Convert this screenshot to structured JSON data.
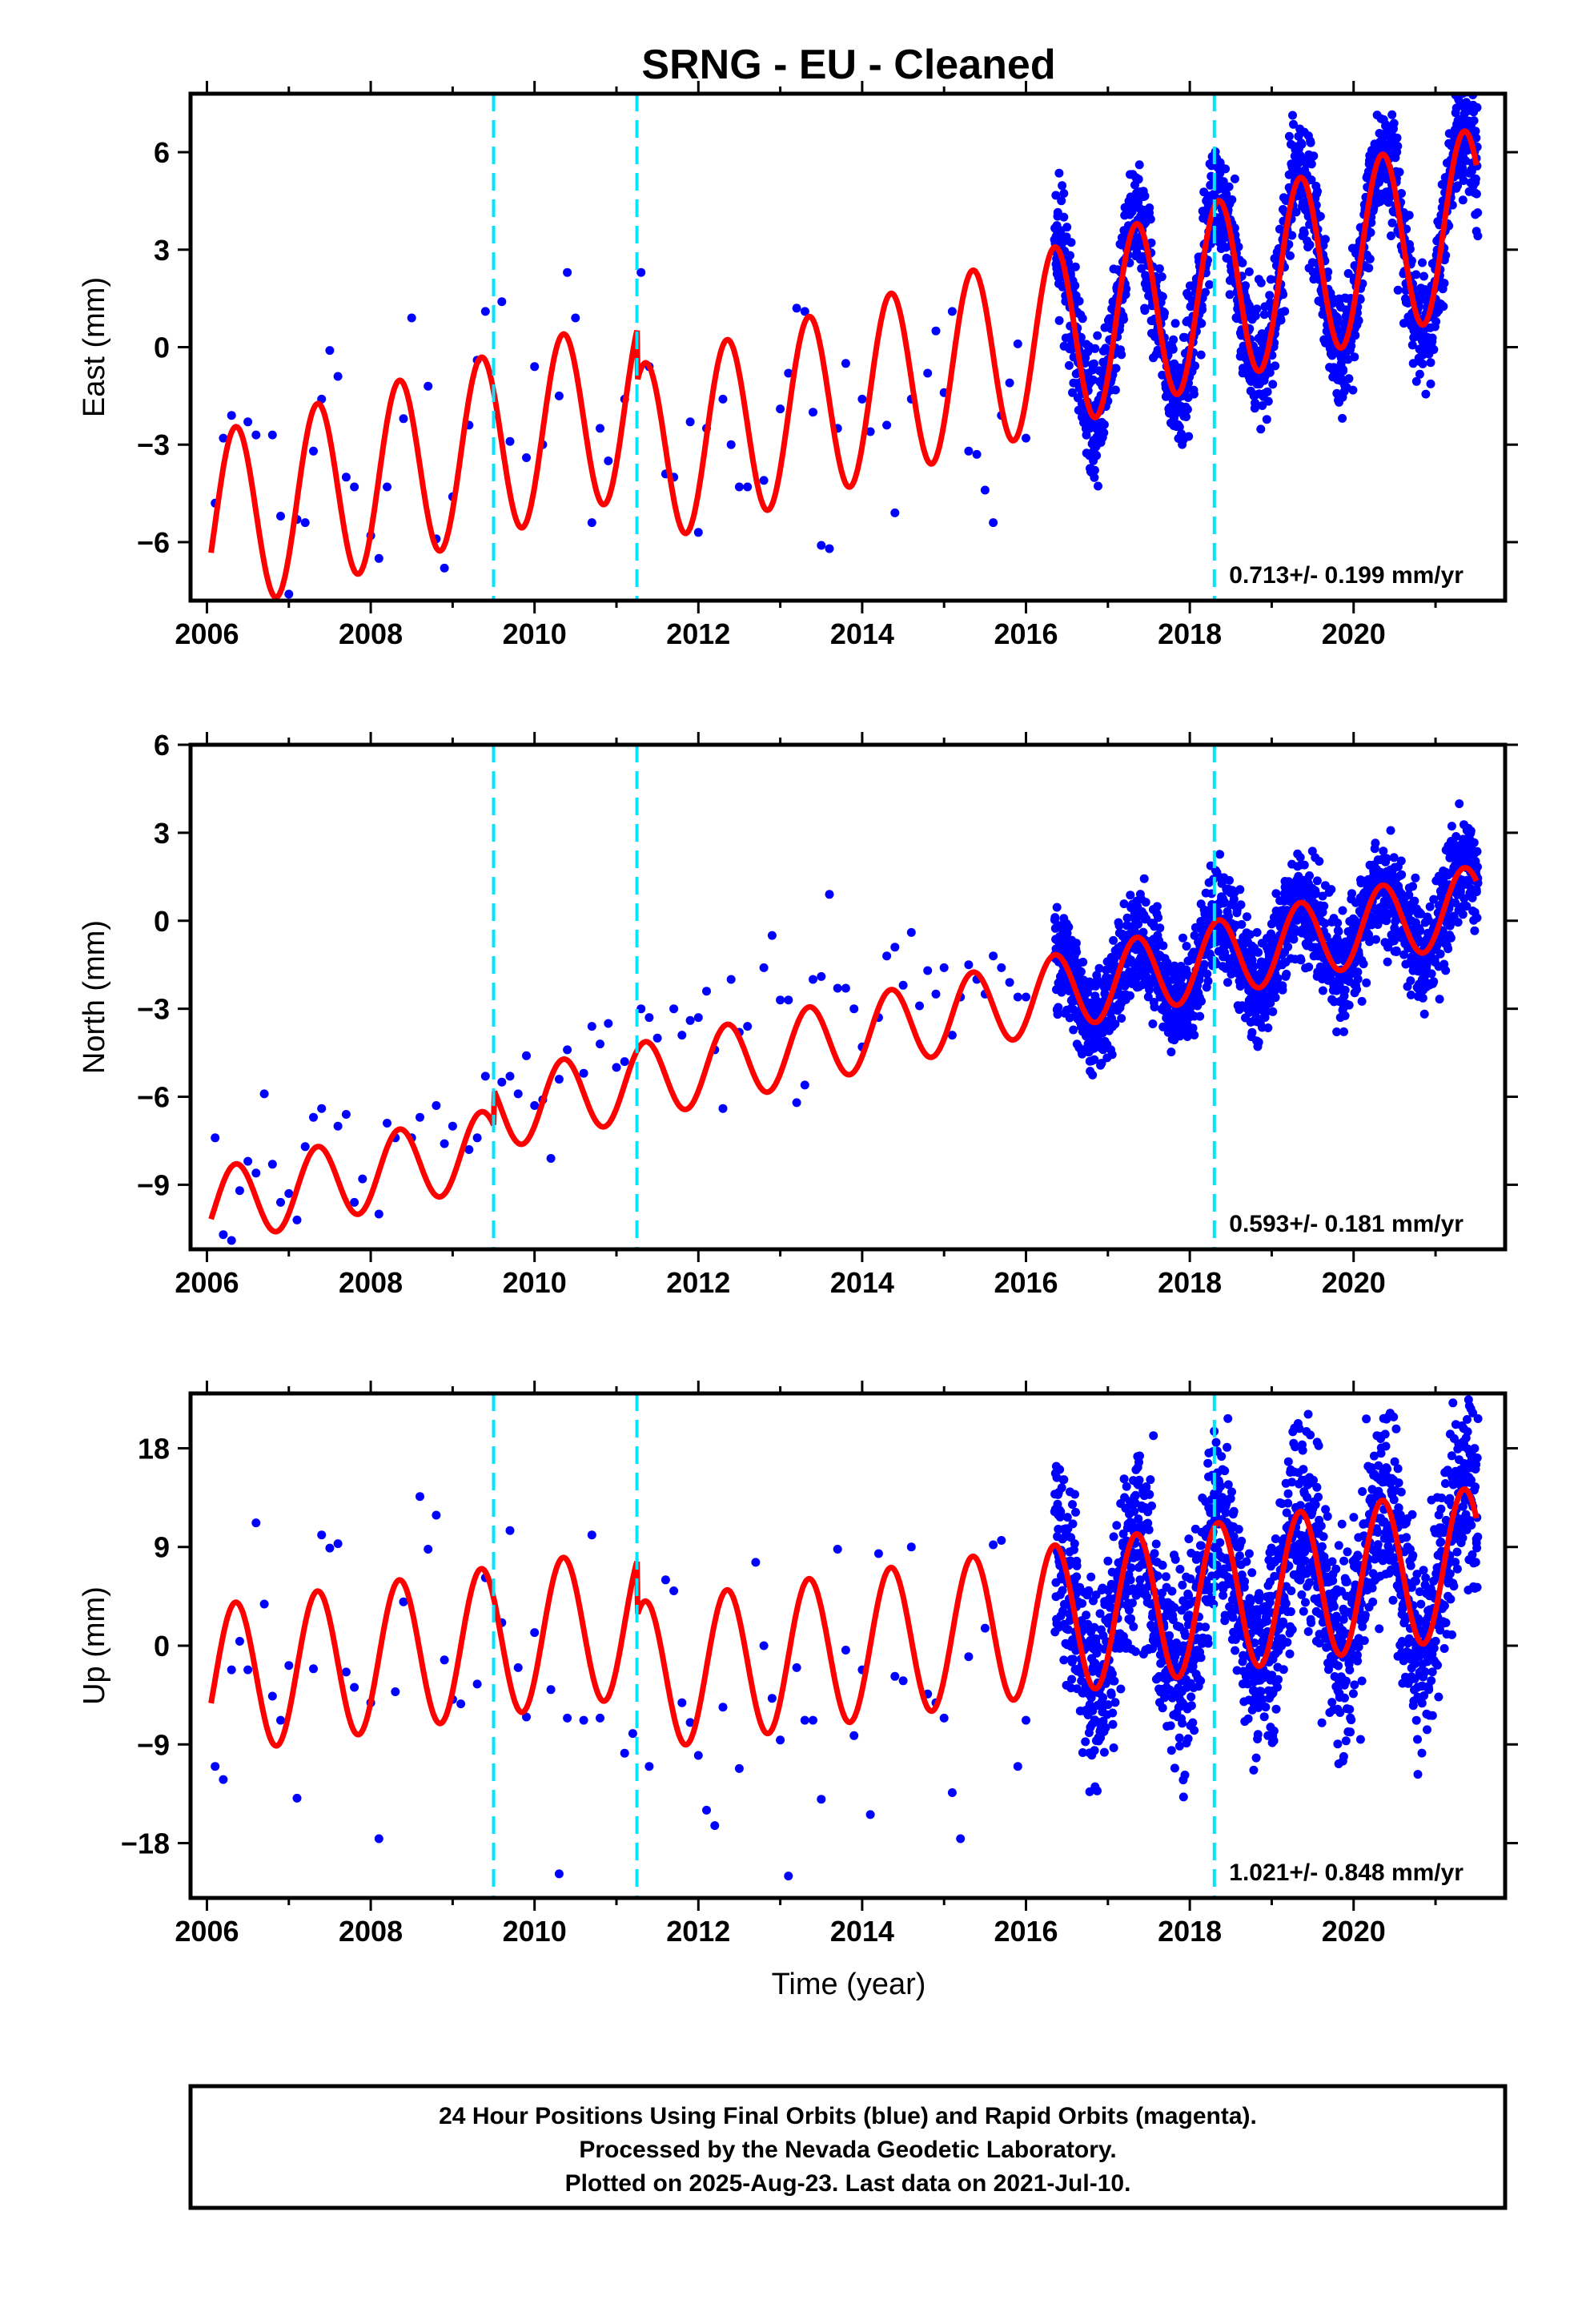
{
  "chart_data": {
    "title": "SRNG  - EU - Cleaned",
    "type": "scatter",
    "x_tick_labels": [
      "2006",
      "2008",
      "2010",
      "2012",
      "2014",
      "2016",
      "2018",
      "2020"
    ],
    "xlim": [
      2005.8,
      2021.85
    ],
    "xlabel": "Time (year)",
    "equipment_change_epochs": [
      2009.5,
      2011.25,
      2018.3
    ],
    "colors": {
      "points": "#0000ff",
      "model": "#ff0000",
      "vlines": "#00e5ff"
    },
    "panels": [
      {
        "ylabel": "East (mm)",
        "ylim": [
          -7.8,
          7.8
        ],
        "yticks": [
          -6,
          -3,
          0,
          3,
          6
        ],
        "ytick_labels": [
          "−6",
          "−3",
          "0",
          "3",
          "6"
        ],
        "rate_label": "0.713+/- 0.199 mm/yr",
        "rate": 0.713,
        "offset": -5.5,
        "amplitude": 2.8,
        "noise": 0.9,
        "steps": [
          [
            2011.25,
            -1.6
          ]
        ],
        "points": [
          [
            2006.1,
            -4.8
          ],
          [
            2006.2,
            -2.8
          ],
          [
            2006.3,
            -2.1
          ],
          [
            2006.5,
            -2.3
          ],
          [
            2006.6,
            -2.7
          ],
          [
            2006.8,
            -2.7
          ],
          [
            2006.9,
            -5.2
          ],
          [
            2007.0,
            -7.6
          ],
          [
            2007.1,
            -5.3
          ],
          [
            2007.2,
            -5.4
          ],
          [
            2007.3,
            -3.2
          ],
          [
            2007.4,
            -1.6
          ],
          [
            2007.5,
            -0.1
          ],
          [
            2007.6,
            -0.9
          ],
          [
            2007.7,
            -4.0
          ],
          [
            2007.8,
            -4.3
          ],
          [
            2008.0,
            -5.8
          ],
          [
            2008.1,
            -6.5
          ],
          [
            2008.2,
            -4.3
          ],
          [
            2008.4,
            -2.2
          ],
          [
            2008.5,
            0.9
          ],
          [
            2008.7,
            -1.2
          ],
          [
            2008.8,
            -5.9
          ],
          [
            2008.9,
            -6.8
          ],
          [
            2009.0,
            -4.6
          ],
          [
            2009.2,
            -2.4
          ],
          [
            2009.3,
            -0.4
          ],
          [
            2009.4,
            1.1
          ],
          [
            2009.6,
            1.4
          ],
          [
            2009.7,
            -2.9
          ],
          [
            2009.9,
            -3.4
          ],
          [
            2010.0,
            -0.6
          ],
          [
            2010.1,
            -3.0
          ],
          [
            2010.3,
            -1.5
          ],
          [
            2010.4,
            2.3
          ],
          [
            2010.5,
            0.9
          ],
          [
            2010.7,
            -5.4
          ],
          [
            2010.8,
            -2.5
          ],
          [
            2010.9,
            -3.5
          ],
          [
            2011.1,
            -1.6
          ],
          [
            2011.3,
            2.3
          ],
          [
            2011.4,
            -0.6
          ],
          [
            2011.6,
            -3.9
          ],
          [
            2011.7,
            -4.0
          ],
          [
            2011.9,
            -2.3
          ],
          [
            2012.0,
            -5.7
          ],
          [
            2012.1,
            -2.5
          ],
          [
            2012.3,
            -1.6
          ],
          [
            2012.4,
            -3.0
          ],
          [
            2012.5,
            -4.3
          ],
          [
            2012.6,
            -4.3
          ],
          [
            2012.8,
            -4.1
          ],
          [
            2013.0,
            -1.9
          ],
          [
            2013.1,
            -0.8
          ],
          [
            2013.2,
            1.2
          ],
          [
            2013.3,
            1.1
          ],
          [
            2013.4,
            -2.0
          ],
          [
            2013.5,
            -6.1
          ],
          [
            2013.6,
            -6.2
          ],
          [
            2013.7,
            -2.5
          ],
          [
            2013.8,
            -0.5
          ],
          [
            2014.0,
            -1.6
          ],
          [
            2014.1,
            -2.6
          ],
          [
            2014.3,
            -2.4
          ],
          [
            2014.4,
            -5.1
          ],
          [
            2014.6,
            -1.6
          ],
          [
            2014.8,
            -0.8
          ],
          [
            2014.9,
            0.5
          ],
          [
            2015.0,
            -1.4
          ],
          [
            2015.1,
            1.1
          ],
          [
            2015.3,
            -3.2
          ],
          [
            2015.4,
            -3.3
          ],
          [
            2015.5,
            -4.4
          ],
          [
            2015.6,
            -5.4
          ],
          [
            2015.7,
            -2.1
          ],
          [
            2015.8,
            -1.1
          ],
          [
            2015.9,
            0.1
          ],
          [
            2016.0,
            -2.8
          ]
        ]
      },
      {
        "ylabel": "North (mm)",
        "ylim": [
          -11.2,
          6
        ],
        "yticks": [
          -9,
          -6,
          -3,
          0,
          3,
          6
        ],
        "ytick_labels": [
          "−9",
          "−6",
          "−3",
          "0",
          "3",
          "6"
        ],
        "rate_label": "0.593+/- 0.181 mm/yr",
        "rate": 0.593,
        "offset": -9.8,
        "amplitude": 1.3,
        "noise": 0.9,
        "steps": [
          [
            2009.5,
            1.2
          ]
        ],
        "points": [
          [
            2006.1,
            -7.4
          ],
          [
            2006.2,
            -10.7
          ],
          [
            2006.3,
            -10.9
          ],
          [
            2006.4,
            -9.2
          ],
          [
            2006.5,
            -8.2
          ],
          [
            2006.6,
            -8.6
          ],
          [
            2006.7,
            -5.9
          ],
          [
            2006.8,
            -8.3
          ],
          [
            2006.9,
            -9.6
          ],
          [
            2007.0,
            -9.3
          ],
          [
            2007.1,
            -10.2
          ],
          [
            2007.2,
            -7.7
          ],
          [
            2007.3,
            -6.7
          ],
          [
            2007.4,
            -6.4
          ],
          [
            2007.6,
            -7.0
          ],
          [
            2007.7,
            -6.6
          ],
          [
            2007.8,
            -9.6
          ],
          [
            2007.9,
            -8.8
          ],
          [
            2008.1,
            -10.0
          ],
          [
            2008.2,
            -6.9
          ],
          [
            2008.3,
            -7.4
          ],
          [
            2008.5,
            -7.4
          ],
          [
            2008.6,
            -6.7
          ],
          [
            2008.8,
            -6.3
          ],
          [
            2008.9,
            -7.6
          ],
          [
            2009.0,
            -7.0
          ],
          [
            2009.2,
            -7.8
          ],
          [
            2009.3,
            -7.4
          ],
          [
            2009.4,
            -5.3
          ],
          [
            2009.6,
            -5.5
          ],
          [
            2009.7,
            -5.3
          ],
          [
            2009.8,
            -5.9
          ],
          [
            2009.9,
            -4.6
          ],
          [
            2010.0,
            -6.3
          ],
          [
            2010.1,
            -6.1
          ],
          [
            2010.2,
            -8.1
          ],
          [
            2010.3,
            -5.4
          ],
          [
            2010.4,
            -4.4
          ],
          [
            2010.6,
            -5.2
          ],
          [
            2010.7,
            -3.6
          ],
          [
            2010.8,
            -4.2
          ],
          [
            2010.9,
            -3.5
          ],
          [
            2011.0,
            -5.0
          ],
          [
            2011.1,
            -4.8
          ],
          [
            2011.3,
            -3.0
          ],
          [
            2011.4,
            -3.3
          ],
          [
            2011.5,
            -4.0
          ],
          [
            2011.7,
            -3.0
          ],
          [
            2011.8,
            -3.9
          ],
          [
            2011.9,
            -3.4
          ],
          [
            2012.0,
            -3.3
          ],
          [
            2012.1,
            -2.4
          ],
          [
            2012.2,
            -4.4
          ],
          [
            2012.3,
            -6.4
          ],
          [
            2012.4,
            -2.0
          ],
          [
            2012.5,
            -3.8
          ],
          [
            2012.6,
            -3.6
          ],
          [
            2012.8,
            -1.6
          ],
          [
            2012.9,
            -0.5
          ],
          [
            2013.0,
            -2.7
          ],
          [
            2013.1,
            -2.7
          ],
          [
            2013.2,
            -6.2
          ],
          [
            2013.3,
            -5.6
          ],
          [
            2013.4,
            -2.0
          ],
          [
            2013.5,
            -1.9
          ],
          [
            2013.6,
            0.9
          ],
          [
            2013.7,
            -2.3
          ],
          [
            2013.8,
            -2.3
          ],
          [
            2013.9,
            -3.0
          ],
          [
            2014.0,
            -4.3
          ],
          [
            2014.2,
            -3.3
          ],
          [
            2014.3,
            -1.2
          ],
          [
            2014.4,
            -0.9
          ],
          [
            2014.5,
            -2.2
          ],
          [
            2014.6,
            -0.4
          ],
          [
            2014.7,
            -2.9
          ],
          [
            2014.8,
            -1.7
          ],
          [
            2014.9,
            -2.5
          ],
          [
            2015.0,
            -1.6
          ],
          [
            2015.1,
            -3.9
          ],
          [
            2015.2,
            -2.6
          ],
          [
            2015.3,
            -1.5
          ],
          [
            2015.4,
            -2.0
          ],
          [
            2015.5,
            -2.5
          ],
          [
            2015.6,
            -1.2
          ],
          [
            2015.7,
            -1.6
          ],
          [
            2015.8,
            -2.1
          ],
          [
            2015.9,
            -2.6
          ],
          [
            2016.0,
            -2.6
          ]
        ]
      },
      {
        "ylabel": "Up (mm)",
        "ylim": [
          -23,
          23
        ],
        "yticks": [
          -18,
          -9,
          0,
          9,
          18
        ],
        "ytick_labels": [
          "−18",
          "−9",
          "0",
          "9",
          "18"
        ],
        "rate_label": "1.021+/- 0.848 mm/yr",
        "rate": 1.021,
        "offset": -3.2,
        "amplitude": 6.8,
        "noise": 4.5,
        "steps": [
          [
            2011.25,
            -5
          ]
        ],
        "points": [
          [
            2006.1,
            -11.0
          ],
          [
            2006.2,
            -12.2
          ],
          [
            2006.3,
            -2.2
          ],
          [
            2006.4,
            0.4
          ],
          [
            2006.5,
            -2.2
          ],
          [
            2006.6,
            11.2
          ],
          [
            2006.7,
            3.8
          ],
          [
            2006.8,
            -4.6
          ],
          [
            2006.9,
            -6.8
          ],
          [
            2007.0,
            -1.8
          ],
          [
            2007.1,
            -13.9
          ],
          [
            2007.3,
            -2.1
          ],
          [
            2007.4,
            10.1
          ],
          [
            2007.5,
            8.9
          ],
          [
            2007.6,
            9.3
          ],
          [
            2007.7,
            -2.4
          ],
          [
            2007.8,
            -3.8
          ],
          [
            2008.0,
            -5.2
          ],
          [
            2008.1,
            -17.6
          ],
          [
            2008.3,
            -4.2
          ],
          [
            2008.4,
            4.0
          ],
          [
            2008.6,
            13.6
          ],
          [
            2008.7,
            8.8
          ],
          [
            2008.8,
            11.9
          ],
          [
            2008.9,
            -1.3
          ],
          [
            2009.0,
            -4.9
          ],
          [
            2009.1,
            -5.3
          ],
          [
            2009.3,
            -3.5
          ],
          [
            2009.4,
            6.2
          ],
          [
            2009.6,
            2.1
          ],
          [
            2009.7,
            10.5
          ],
          [
            2009.8,
            -2.0
          ],
          [
            2009.9,
            -6.5
          ],
          [
            2010.0,
            1.2
          ],
          [
            2010.2,
            -4.0
          ],
          [
            2010.3,
            -20.8
          ],
          [
            2010.4,
            -6.6
          ],
          [
            2010.6,
            -6.8
          ],
          [
            2010.7,
            10.1
          ],
          [
            2010.8,
            -6.6
          ],
          [
            2011.1,
            -9.8
          ],
          [
            2011.2,
            -8.0
          ],
          [
            2011.4,
            -11.0
          ],
          [
            2011.6,
            6.0
          ],
          [
            2011.7,
            5.0
          ],
          [
            2011.8,
            -5.2
          ],
          [
            2011.9,
            -7.0
          ],
          [
            2012.0,
            -10.0
          ],
          [
            2012.1,
            -15.0
          ],
          [
            2012.2,
            -16.4
          ],
          [
            2012.3,
            -5.6
          ],
          [
            2012.5,
            -11.2
          ],
          [
            2012.7,
            7.6
          ],
          [
            2012.8,
            0.0
          ],
          [
            2012.9,
            -4.8
          ],
          [
            2013.0,
            -8.6
          ],
          [
            2013.1,
            -21.0
          ],
          [
            2013.2,
            -2.0
          ],
          [
            2013.3,
            -6.8
          ],
          [
            2013.4,
            -6.8
          ],
          [
            2013.5,
            -14.0
          ],
          [
            2013.7,
            8.8
          ],
          [
            2013.8,
            -0.4
          ],
          [
            2013.9,
            -8.2
          ],
          [
            2014.0,
            -2.2
          ],
          [
            2014.1,
            -15.4
          ],
          [
            2014.2,
            8.4
          ],
          [
            2014.4,
            -2.8
          ],
          [
            2014.5,
            -3.2
          ],
          [
            2014.6,
            9.0
          ],
          [
            2014.8,
            -4.4
          ],
          [
            2014.9,
            -5.2
          ],
          [
            2015.0,
            -6.6
          ],
          [
            2015.1,
            -13.4
          ],
          [
            2015.2,
            -17.6
          ],
          [
            2015.3,
            -1.0
          ],
          [
            2015.5,
            1.6
          ],
          [
            2015.6,
            9.2
          ],
          [
            2015.7,
            9.6
          ],
          [
            2015.9,
            -11.0
          ],
          [
            2016.0,
            -6.8
          ]
        ]
      }
    ],
    "dense_period": {
      "start": 2016.35,
      "end": 2021.52,
      "per_year": 360
    }
  },
  "footer": {
    "line1": "24 Hour Positions Using Final Orbits (blue) and Rapid Orbits (magenta).",
    "line2": "Processed by the Nevada Geodetic Laboratory.",
    "line3": "Plotted on 2025-Aug-23. Last data on 2021-Jul-10."
  }
}
